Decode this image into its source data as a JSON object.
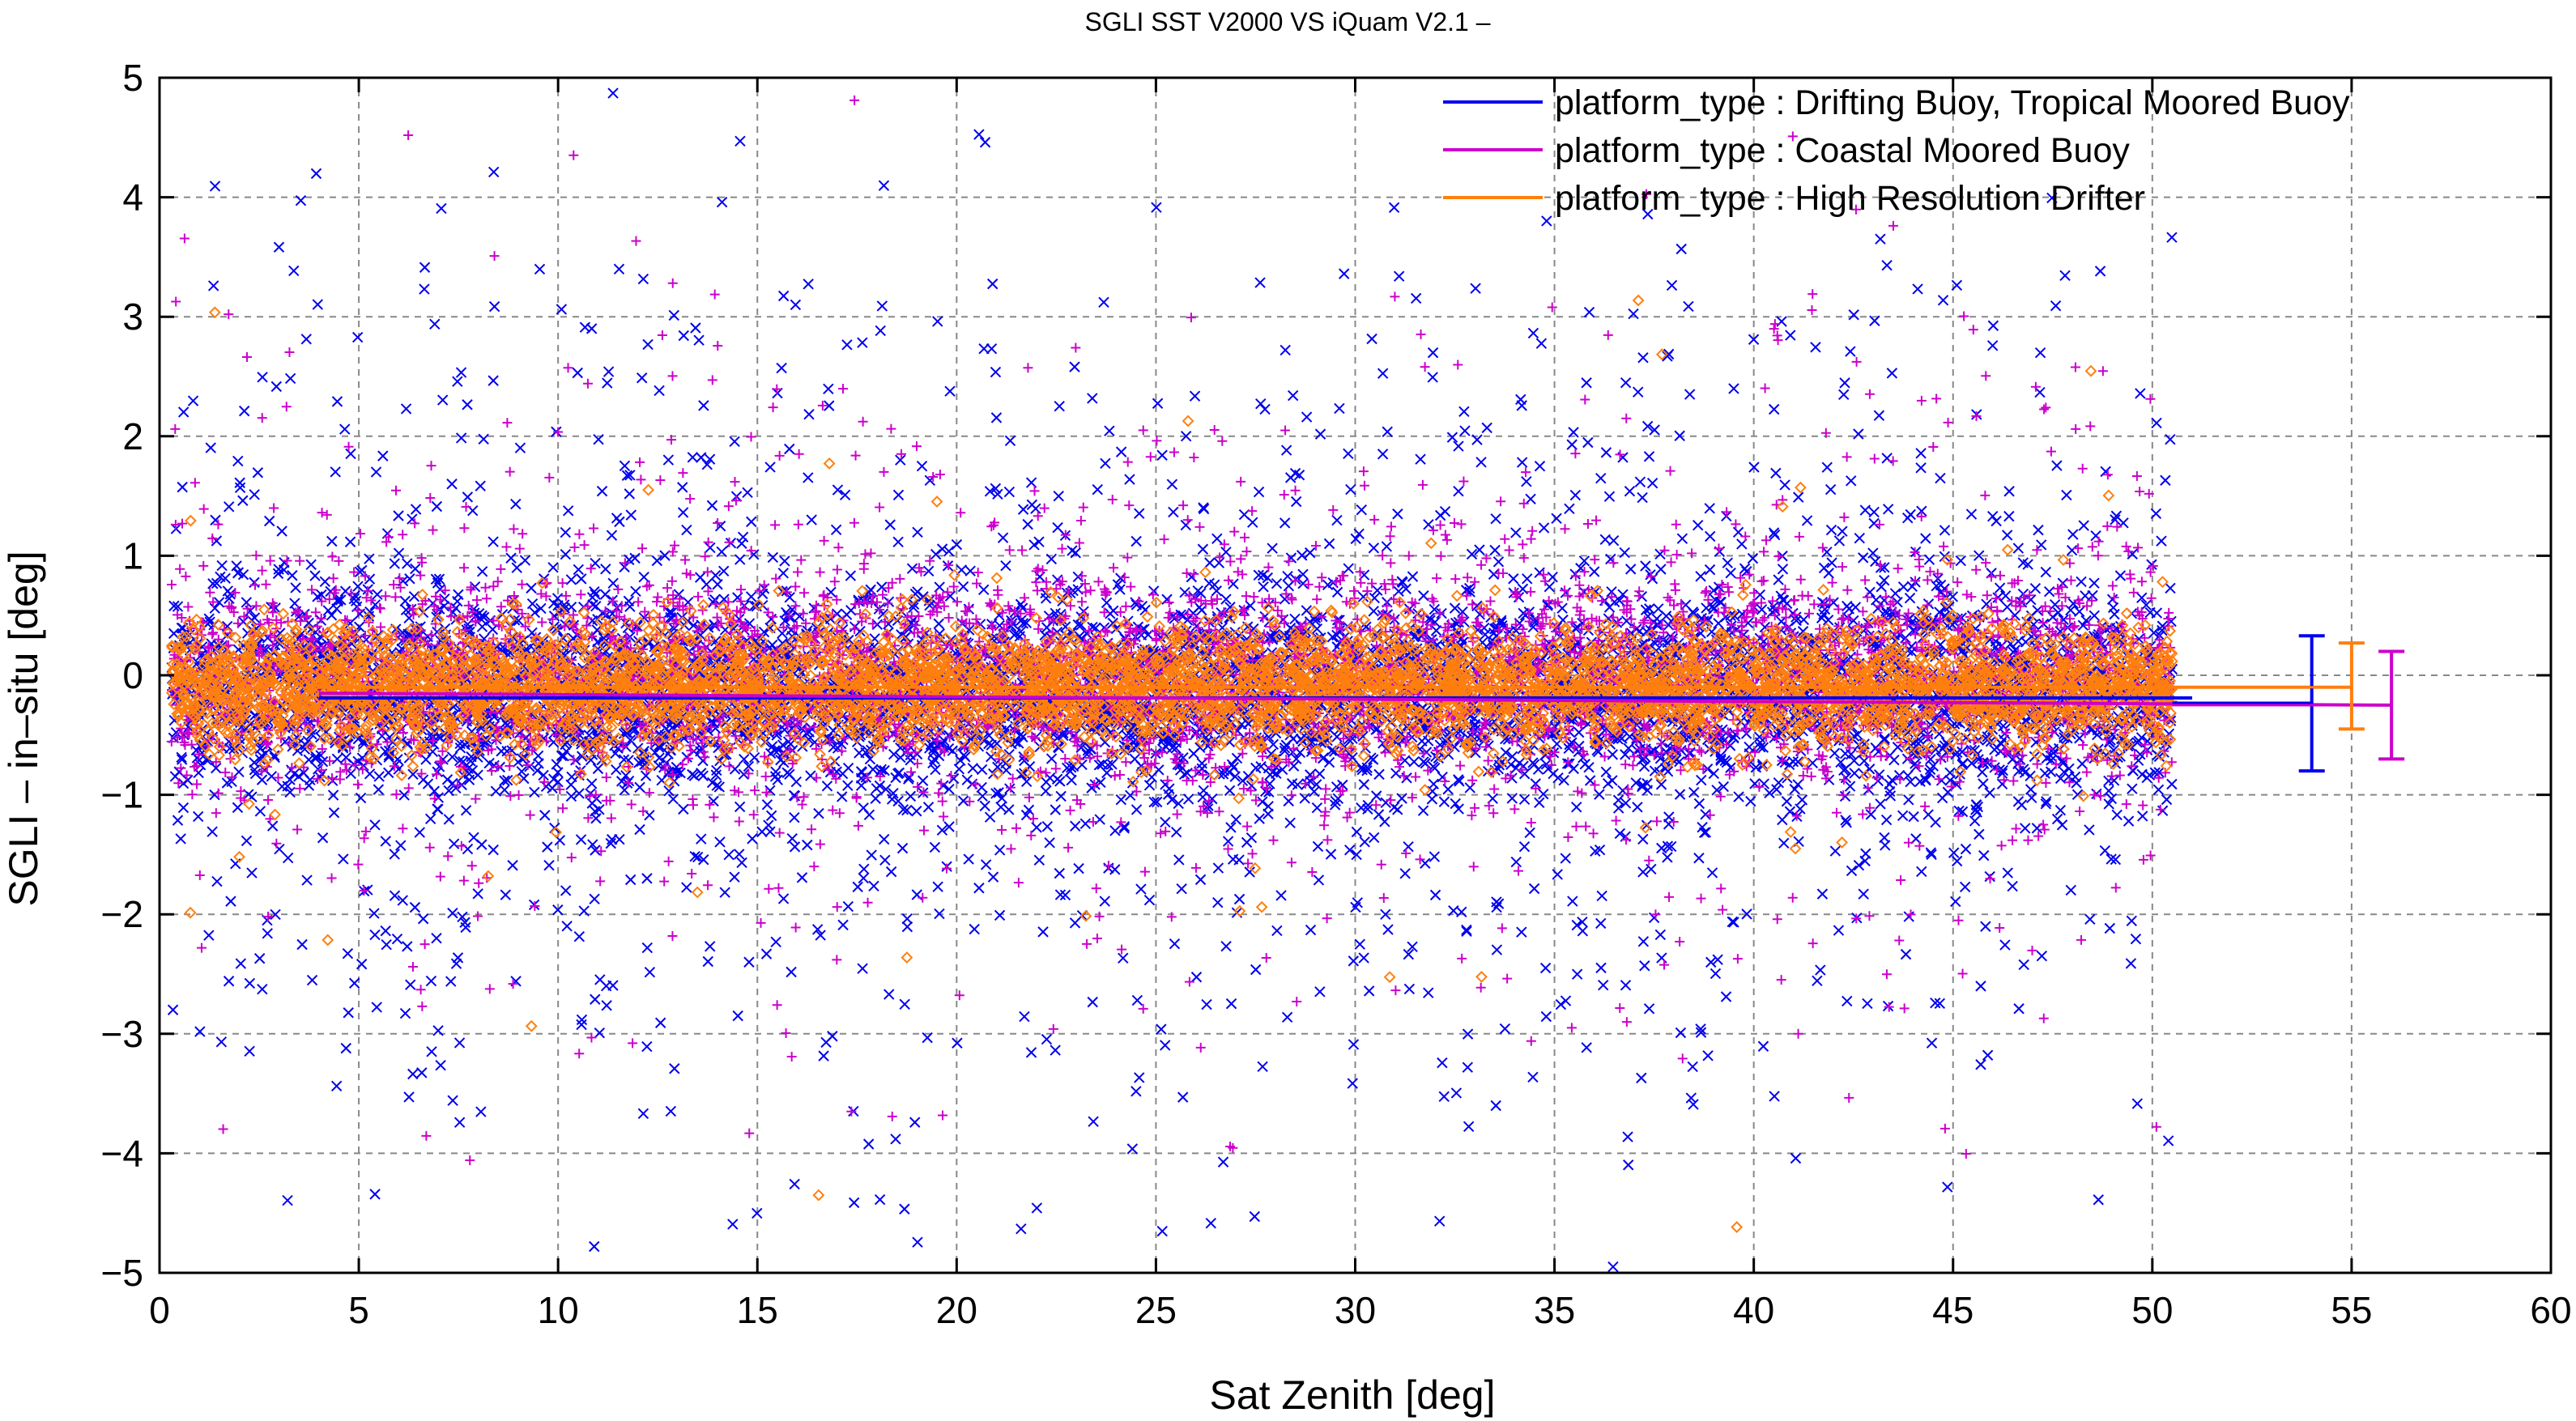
{
  "chart_data": {
    "type": "scatter",
    "title": "SGLI SST V2000 VS iQuam V2.1  –",
    "xlabel": "Sat Zenith [deg]",
    "ylabel": "SGLI – in–situ [deg]",
    "xlim": [
      0,
      60
    ],
    "ylim": [
      -5,
      5
    ],
    "x_ticks": [
      0,
      5,
      10,
      15,
      20,
      25,
      30,
      35,
      40,
      45,
      50,
      55,
      60
    ],
    "y_ticks": [
      -5,
      -4,
      -3,
      -2,
      -1,
      0,
      1,
      2,
      3,
      4,
      5
    ],
    "x_tick_labels": [
      "0",
      "5",
      "10",
      "15",
      "20",
      "25",
      "30",
      "35",
      "40",
      "45",
      "50",
      "55",
      "60"
    ],
    "y_tick_labels": [
      "−5",
      "−4",
      "−3",
      "−2",
      "−1",
      "0",
      "1",
      "2",
      "3",
      "4",
      "5"
    ],
    "grid": true,
    "legend_position": "top-right",
    "point_x_range": [
      0.3,
      50.5
    ],
    "series": [
      {
        "name": "platform_type : Drifting Buoy, Tropical Moored Buoy",
        "color": "#0000ee",
        "marker": "x",
        "scatter_core_range": [
          -0.9,
          0.6
        ],
        "fit_line": {
          "x": [
            4,
            51
          ],
          "y": [
            -0.19,
            -0.19
          ]
        },
        "summary": {
          "x": 54,
          "mean": -0.23,
          "low": -0.8,
          "high": 0.33
        }
      },
      {
        "name": "platform_type : Coastal Moored Buoy",
        "color": "#cc00cc",
        "marker": "+",
        "scatter_core_range": [
          -0.8,
          0.8
        ],
        "fit_line": {
          "x": [
            4,
            56
          ],
          "y": [
            -0.15,
            -0.25
          ]
        },
        "summary": {
          "x": 56,
          "mean": -0.25,
          "low": -0.7,
          "high": 0.2
        }
      },
      {
        "name": "platform_type : High Resolution Drifter",
        "color": "#ff7f0e",
        "marker": "diamond",
        "scatter_core_range": [
          -0.6,
          0.4
        ],
        "fit_line": {
          "x": [
            4,
            55
          ],
          "y": [
            -0.1,
            -0.1
          ]
        },
        "summary": {
          "x": 55,
          "mean": -0.1,
          "low": -0.45,
          "high": 0.27
        }
      }
    ]
  }
}
